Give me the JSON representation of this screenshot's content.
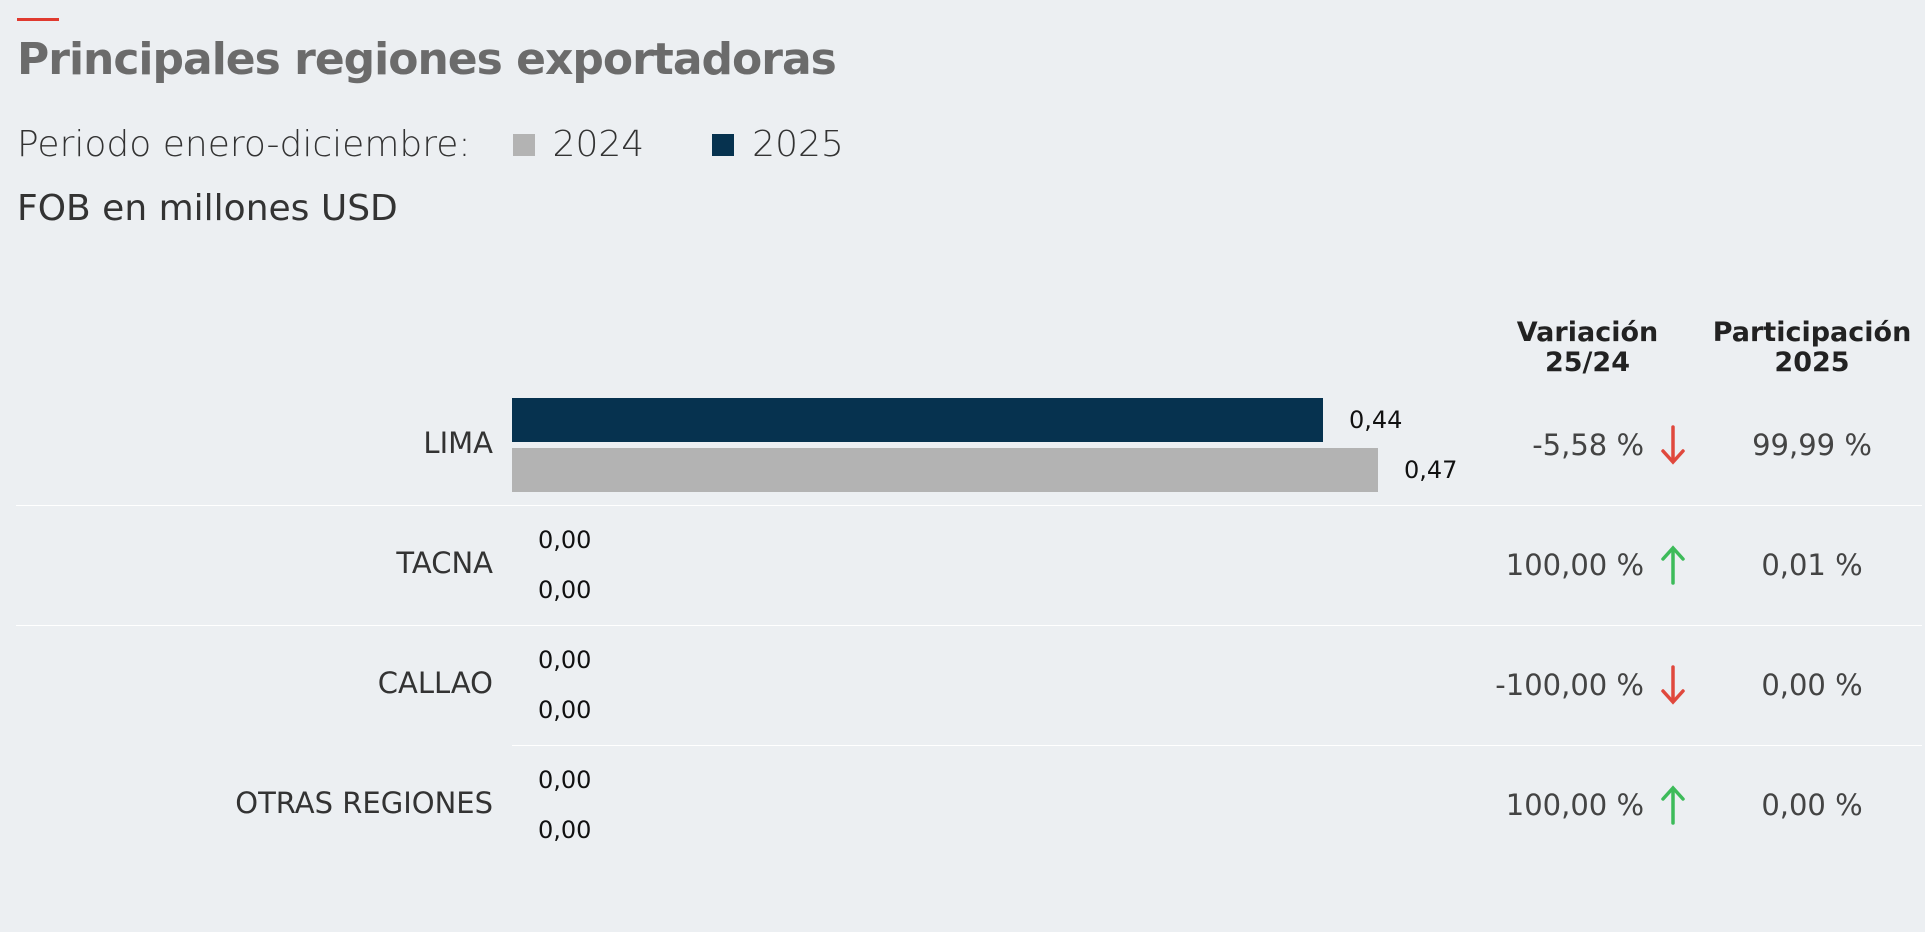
{
  "header": {
    "title": "Principales regiones exportadoras",
    "period_label": "Periodo enero-diciembre:",
    "unit_label": "FOB en millones USD"
  },
  "legend": [
    {
      "label": "2024",
      "color": "#b3b3b3"
    },
    {
      "label": "2025",
      "color": "#06324f"
    }
  ],
  "columns": {
    "variation": [
      "Variación",
      "25/24"
    ],
    "share": [
      "Participación",
      "2025"
    ]
  },
  "colors": {
    "accent": "#e03a2f",
    "up": "#3dbb5a",
    "down": "#e0483d"
  },
  "chart_data": {
    "type": "bar",
    "orientation": "horizontal",
    "categories": [
      "LIMA",
      "TACNA",
      "CALLAO",
      "OTRAS REGIONES"
    ],
    "series": [
      {
        "name": "2025",
        "values": [
          0.44,
          0.0,
          0.0,
          0.0
        ],
        "labels": [
          "0,44",
          "0,00",
          "0,00",
          "0,00"
        ]
      },
      {
        "name": "2024",
        "values": [
          0.47,
          0.0,
          0.0,
          0.0
        ],
        "labels": [
          "0,47",
          "0,00",
          "0,00",
          "0,00"
        ]
      }
    ],
    "variation": [
      {
        "text": "-5,58 %",
        "direction": "down"
      },
      {
        "text": "100,00 %",
        "direction": "up"
      },
      {
        "text": "-100,00 %",
        "direction": "down"
      },
      {
        "text": "100,00 %",
        "direction": "up"
      }
    ],
    "share_2025": [
      "99,99 %",
      "0,01 %",
      "0,00 %",
      "0,00 %"
    ],
    "xlim": [
      0,
      0.5
    ],
    "grid": false
  }
}
